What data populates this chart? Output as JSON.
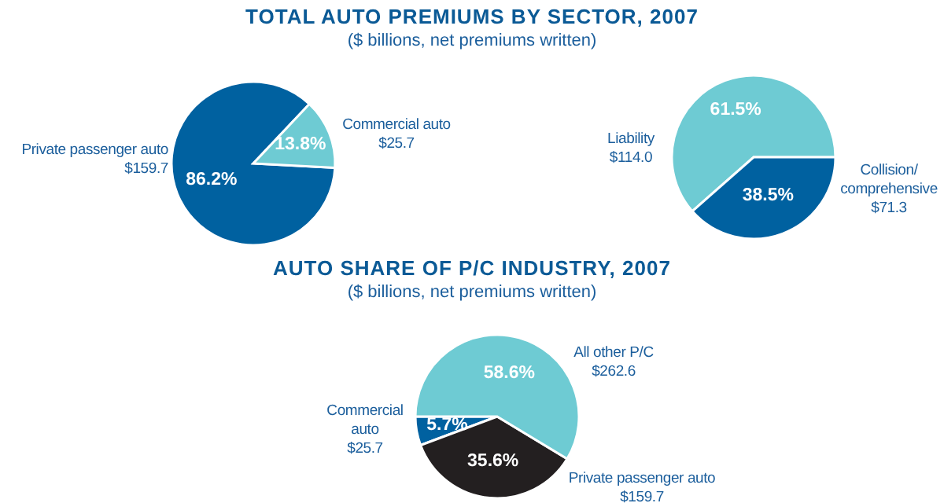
{
  "chart_data": [
    {
      "type": "pie",
      "title": "TOTAL AUTO PREMIUMS BY SECTOR, 2007",
      "subtitle": "($ billions, net premiums written)",
      "categories": [
        "Private passenger auto",
        "Commercial auto"
      ],
      "values": [
        86.2,
        13.8
      ],
      "colors": [
        "#0061a0",
        "#6ecbd3"
      ],
      "value_labels": [
        "86.2%",
        "13.8%"
      ],
      "annotations": [
        {
          "text": "$159.7",
          "x": "Private passenger auto"
        },
        {
          "text": "$25.7",
          "x": "Commercial auto"
        }
      ]
    },
    {
      "type": "pie",
      "categories": [
        "Liability",
        "Collision/comprehensive"
      ],
      "values": [
        61.5,
        38.5
      ],
      "colors": [
        "#6ecbd3",
        "#0061a0"
      ],
      "value_labels": [
        "61.5%",
        "38.5%"
      ],
      "annotations": [
        {
          "text": "$114.0",
          "x": "Liability"
        },
        {
          "text": "$71.3",
          "x": "Collision/comprehensive"
        }
      ]
    },
    {
      "type": "pie",
      "title": "AUTO SHARE OF P/C INDUSTRY, 2007",
      "subtitle": "($ billions, net premiums written)",
      "categories": [
        "Commercial auto",
        "Private passenger auto",
        "All other P/C"
      ],
      "values": [
        5.7,
        35.6,
        58.6
      ],
      "colors": [
        "#0061a0",
        "#231f20",
        "#6ecbd3"
      ],
      "value_labels": [
        "5.7%",
        "35.6%",
        "58.6%"
      ],
      "annotations": [
        {
          "text": "$25.7",
          "x": "Commercial auto"
        },
        {
          "text": "$159.7",
          "x": "Private passenger auto"
        },
        {
          "text": "$262.6",
          "x": "All other P/C"
        }
      ]
    }
  ]
}
